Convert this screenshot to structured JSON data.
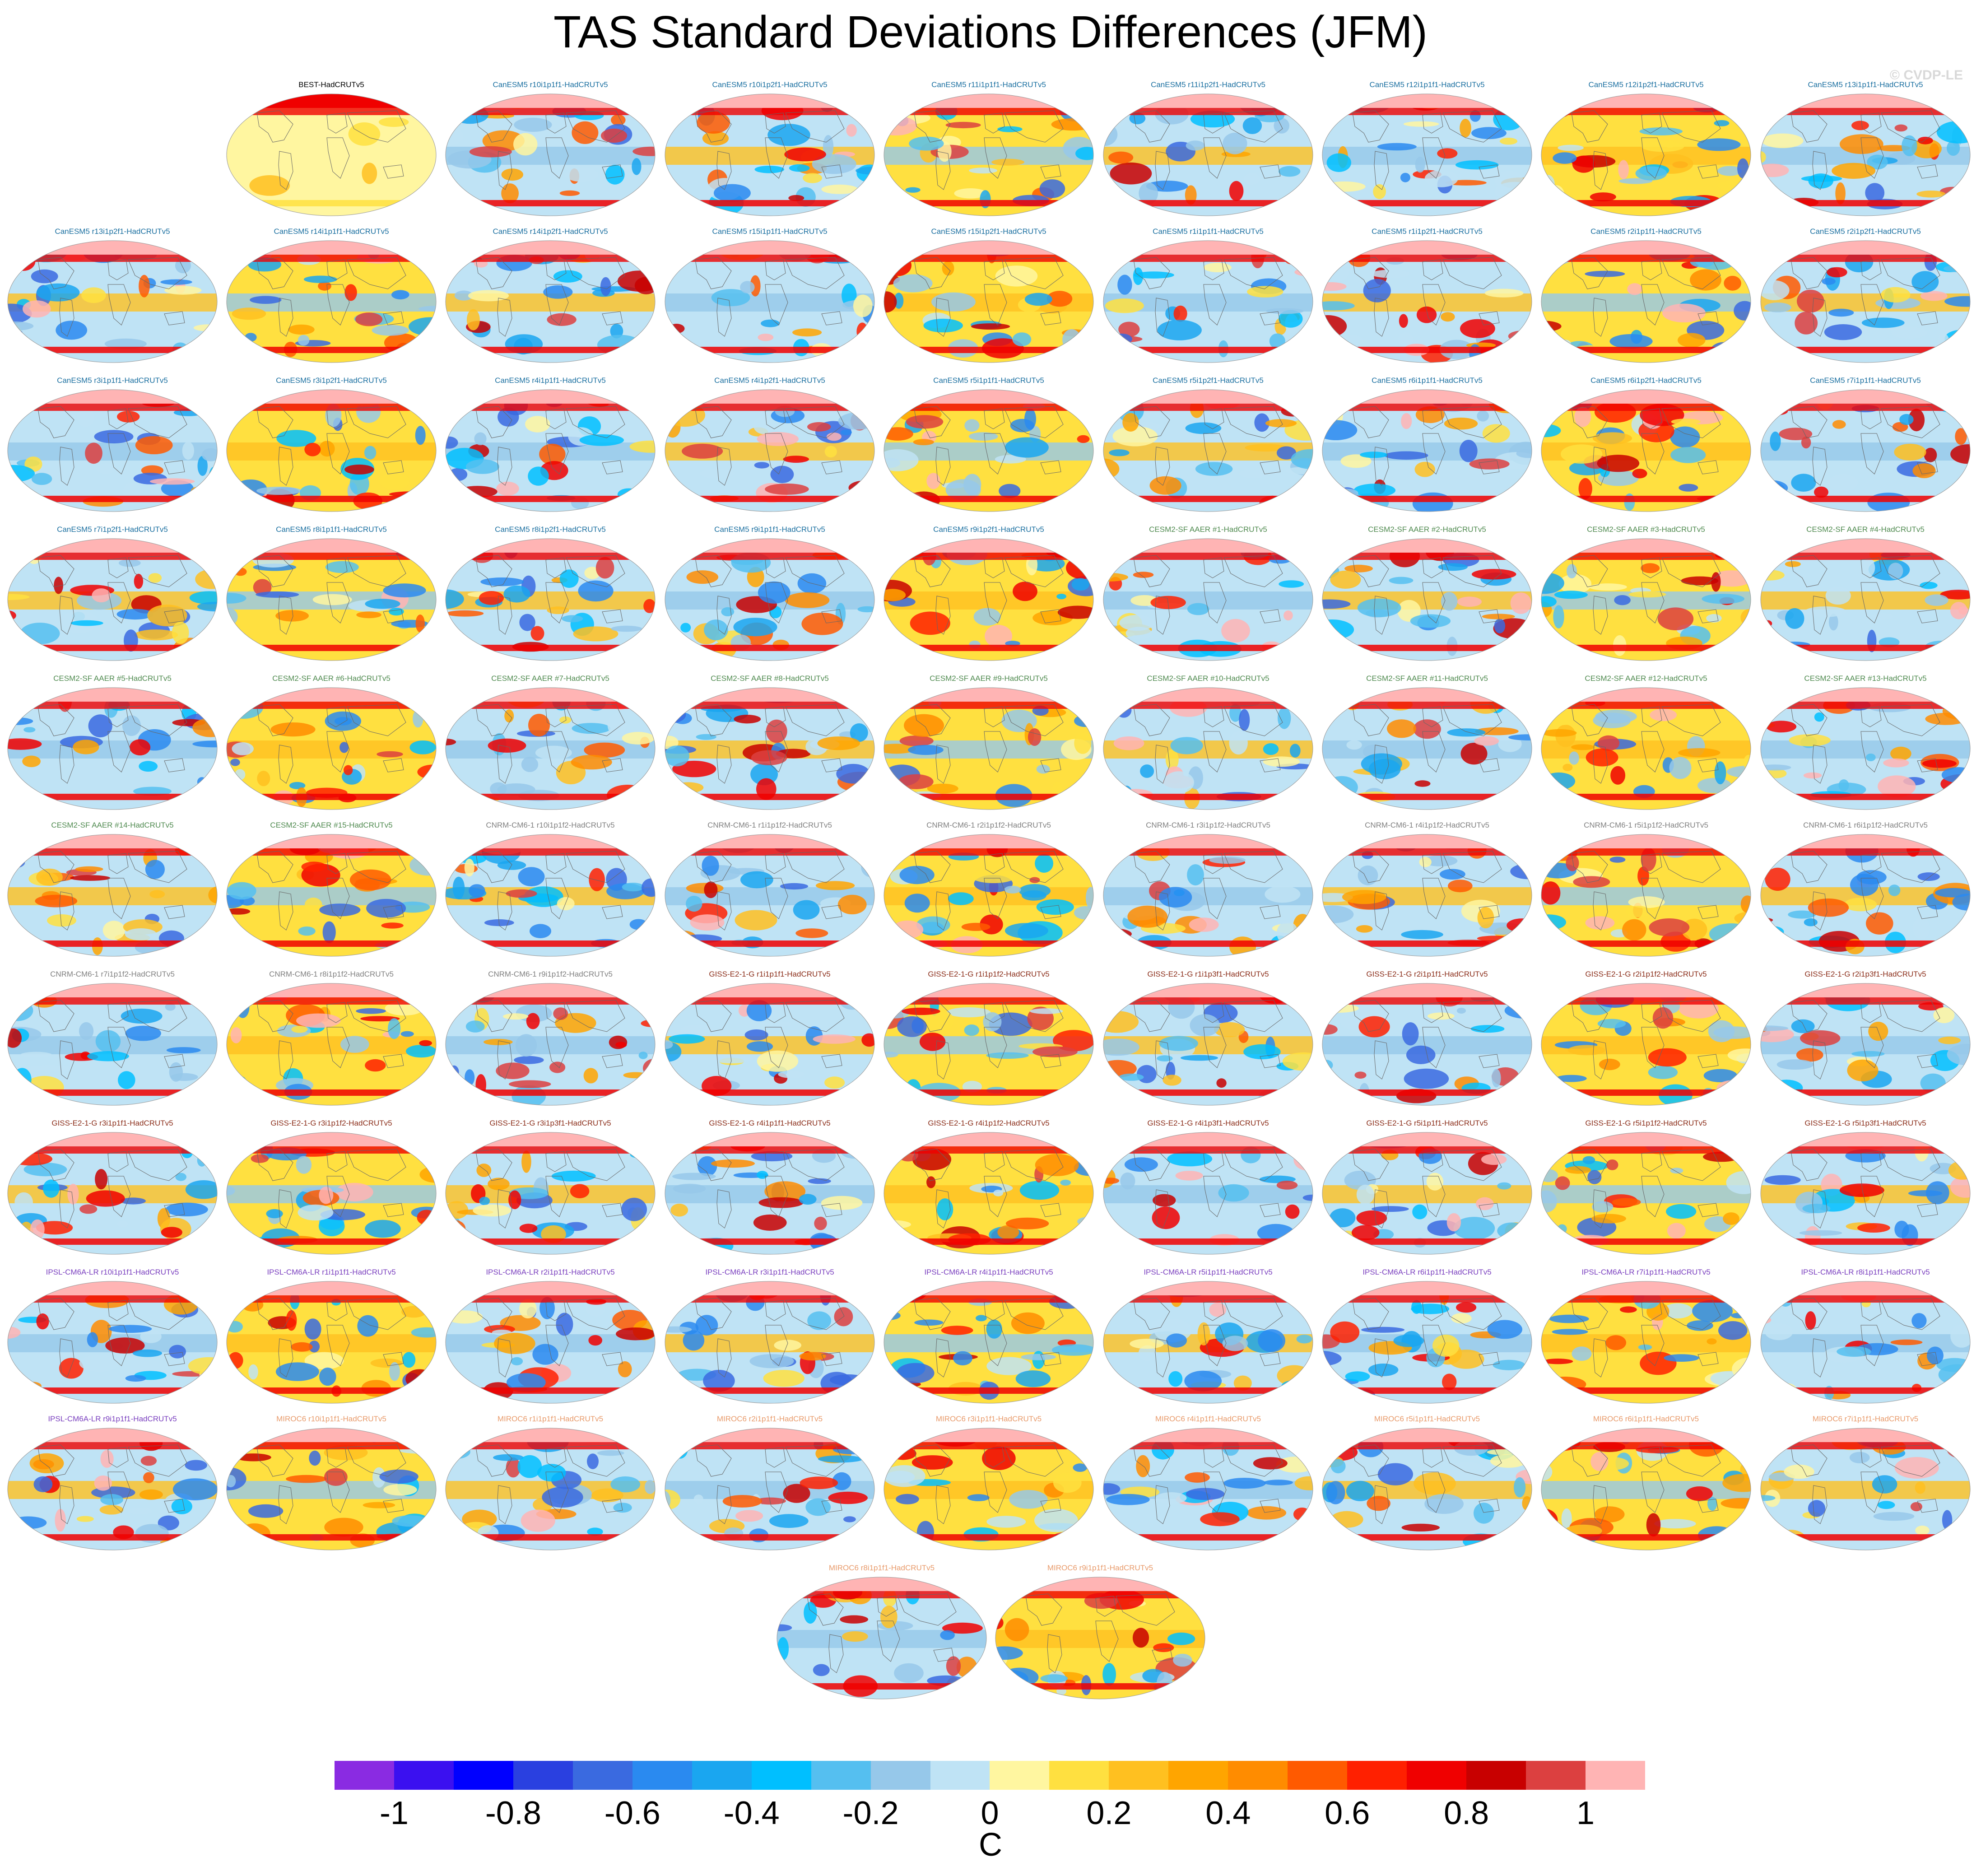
{
  "figure": {
    "title": "TAS Standard Deviations Differences (JFM)",
    "watermark": "© CVDP-LE"
  },
  "panels": [
    {
      "label": "BEST-HadCRUTv5",
      "group": "obs"
    },
    {
      "label": "CanESM5 r10i1p1f1-HadCRUTv5",
      "group": "canesm"
    },
    {
      "label": "CanESM5 r10i1p2f1-HadCRUTv5",
      "group": "canesm"
    },
    {
      "label": "CanESM5 r11i1p1f1-HadCRUTv5",
      "group": "canesm"
    },
    {
      "label": "CanESM5 r11i1p2f1-HadCRUTv5",
      "group": "canesm"
    },
    {
      "label": "CanESM5 r12i1p1f1-HadCRUTv5",
      "group": "canesm"
    },
    {
      "label": "CanESM5 r12i1p2f1-HadCRUTv5",
      "group": "canesm"
    },
    {
      "label": "CanESM5 r13i1p1f1-HadCRUTv5",
      "group": "canesm"
    },
    {
      "label": "CanESM5 r13i1p2f1-HadCRUTv5",
      "group": "canesm"
    },
    {
      "label": "CanESM5 r14i1p1f1-HadCRUTv5",
      "group": "canesm"
    },
    {
      "label": "CanESM5 r14i1p2f1-HadCRUTv5",
      "group": "canesm"
    },
    {
      "label": "CanESM5 r15i1p1f1-HadCRUTv5",
      "group": "canesm"
    },
    {
      "label": "CanESM5 r15i1p2f1-HadCRUTv5",
      "group": "canesm"
    },
    {
      "label": "CanESM5 r1i1p1f1-HadCRUTv5",
      "group": "canesm"
    },
    {
      "label": "CanESM5 r1i1p2f1-HadCRUTv5",
      "group": "canesm"
    },
    {
      "label": "CanESM5 r2i1p1f1-HadCRUTv5",
      "group": "canesm"
    },
    {
      "label": "CanESM5 r2i1p2f1-HadCRUTv5",
      "group": "canesm"
    },
    {
      "label": "CanESM5 r3i1p1f1-HadCRUTv5",
      "group": "canesm"
    },
    {
      "label": "CanESM5 r3i1p2f1-HadCRUTv5",
      "group": "canesm"
    },
    {
      "label": "CanESM5 r4i1p1f1-HadCRUTv5",
      "group": "canesm"
    },
    {
      "label": "CanESM5 r4i1p2f1-HadCRUTv5",
      "group": "canesm"
    },
    {
      "label": "CanESM5 r5i1p1f1-HadCRUTv5",
      "group": "canesm"
    },
    {
      "label": "CanESM5 r5i1p2f1-HadCRUTv5",
      "group": "canesm"
    },
    {
      "label": "CanESM5 r6i1p1f1-HadCRUTv5",
      "group": "canesm"
    },
    {
      "label": "CanESM5 r6i1p2f1-HadCRUTv5",
      "group": "canesm"
    },
    {
      "label": "CanESM5 r7i1p1f1-HadCRUTv5",
      "group": "canesm"
    },
    {
      "label": "CanESM5 r7i1p2f1-HadCRUTv5",
      "group": "canesm"
    },
    {
      "label": "CanESM5 r8i1p1f1-HadCRUTv5",
      "group": "canesm"
    },
    {
      "label": "CanESM5 r8i1p2f1-HadCRUTv5",
      "group": "canesm"
    },
    {
      "label": "CanESM5 r9i1p1f1-HadCRUTv5",
      "group": "canesm"
    },
    {
      "label": "CanESM5 r9i1p2f1-HadCRUTv5",
      "group": "canesm"
    },
    {
      "label": "CESM2-SF AAER #1-HadCRUTv5",
      "group": "cesm"
    },
    {
      "label": "CESM2-SF AAER #2-HadCRUTv5",
      "group": "cesm"
    },
    {
      "label": "CESM2-SF AAER #3-HadCRUTv5",
      "group": "cesm"
    },
    {
      "label": "CESM2-SF AAER #4-HadCRUTv5",
      "group": "cesm"
    },
    {
      "label": "CESM2-SF AAER #5-HadCRUTv5",
      "group": "cesm"
    },
    {
      "label": "CESM2-SF AAER #6-HadCRUTv5",
      "group": "cesm"
    },
    {
      "label": "CESM2-SF AAER #7-HadCRUTv5",
      "group": "cesm"
    },
    {
      "label": "CESM2-SF AAER #8-HadCRUTv5",
      "group": "cesm"
    },
    {
      "label": "CESM2-SF AAER #9-HadCRUTv5",
      "group": "cesm"
    },
    {
      "label": "CESM2-SF AAER #10-HadCRUTv5",
      "group": "cesm"
    },
    {
      "label": "CESM2-SF AAER #11-HadCRUTv5",
      "group": "cesm"
    },
    {
      "label": "CESM2-SF AAER #12-HadCRUTv5",
      "group": "cesm"
    },
    {
      "label": "CESM2-SF AAER #13-HadCRUTv5",
      "group": "cesm"
    },
    {
      "label": "CESM2-SF AAER #14-HadCRUTv5",
      "group": "cesm"
    },
    {
      "label": "CESM2-SF AAER #15-HadCRUTv5",
      "group": "cesm"
    },
    {
      "label": "CNRM-CM6-1 r10i1p1f2-HadCRUTv5",
      "group": "cnrm"
    },
    {
      "label": "CNRM-CM6-1 r1i1p1f2-HadCRUTv5",
      "group": "cnrm"
    },
    {
      "label": "CNRM-CM6-1 r2i1p1f2-HadCRUTv5",
      "group": "cnrm"
    },
    {
      "label": "CNRM-CM6-1 r3i1p1f2-HadCRUTv5",
      "group": "cnrm"
    },
    {
      "label": "CNRM-CM6-1 r4i1p1f2-HadCRUTv5",
      "group": "cnrm"
    },
    {
      "label": "CNRM-CM6-1 r5i1p1f2-HadCRUTv5",
      "group": "cnrm"
    },
    {
      "label": "CNRM-CM6-1 r6i1p1f2-HadCRUTv5",
      "group": "cnrm"
    },
    {
      "label": "CNRM-CM6-1 r7i1p1f2-HadCRUTv5",
      "group": "cnrm"
    },
    {
      "label": "CNRM-CM6-1 r8i1p1f2-HadCRUTv5",
      "group": "cnrm"
    },
    {
      "label": "CNRM-CM6-1 r9i1p1f2-HadCRUTv5",
      "group": "cnrm"
    },
    {
      "label": "GISS-E2-1-G r1i1p1f1-HadCRUTv5",
      "group": "giss"
    },
    {
      "label": "GISS-E2-1-G r1i1p1f2-HadCRUTv5",
      "group": "giss"
    },
    {
      "label": "GISS-E2-1-G r1i1p3f1-HadCRUTv5",
      "group": "giss"
    },
    {
      "label": "GISS-E2-1-G r2i1p1f1-HadCRUTv5",
      "group": "giss"
    },
    {
      "label": "GISS-E2-1-G r2i1p1f2-HadCRUTv5",
      "group": "giss"
    },
    {
      "label": "GISS-E2-1-G r2i1p3f1-HadCRUTv5",
      "group": "giss"
    },
    {
      "label": "GISS-E2-1-G r3i1p1f1-HadCRUTv5",
      "group": "giss"
    },
    {
      "label": "GISS-E2-1-G r3i1p1f2-HadCRUTv5",
      "group": "giss"
    },
    {
      "label": "GISS-E2-1-G r3i1p3f1-HadCRUTv5",
      "group": "giss"
    },
    {
      "label": "GISS-E2-1-G r4i1p1f1-HadCRUTv5",
      "group": "giss"
    },
    {
      "label": "GISS-E2-1-G r4i1p1f2-HadCRUTv5",
      "group": "giss"
    },
    {
      "label": "GISS-E2-1-G r4i1p3f1-HadCRUTv5",
      "group": "giss"
    },
    {
      "label": "GISS-E2-1-G r5i1p1f1-HadCRUTv5",
      "group": "giss"
    },
    {
      "label": "GISS-E2-1-G r5i1p1f2-HadCRUTv5",
      "group": "giss"
    },
    {
      "label": "GISS-E2-1-G r5i1p3f1-HadCRUTv5",
      "group": "giss"
    },
    {
      "label": "IPSL-CM6A-LR r10i1p1f1-HadCRUTv5",
      "group": "ipsl"
    },
    {
      "label": "IPSL-CM6A-LR r1i1p1f1-HadCRUTv5",
      "group": "ipsl"
    },
    {
      "label": "IPSL-CM6A-LR r2i1p1f1-HadCRUTv5",
      "group": "ipsl"
    },
    {
      "label": "IPSL-CM6A-LR r3i1p1f1-HadCRUTv5",
      "group": "ipsl"
    },
    {
      "label": "IPSL-CM6A-LR r4i1p1f1-HadCRUTv5",
      "group": "ipsl"
    },
    {
      "label": "IPSL-CM6A-LR r5i1p1f1-HadCRUTv5",
      "group": "ipsl"
    },
    {
      "label": "IPSL-CM6A-LR r6i1p1f1-HadCRUTv5",
      "group": "ipsl"
    },
    {
      "label": "IPSL-CM6A-LR r7i1p1f1-HadCRUTv5",
      "group": "ipsl"
    },
    {
      "label": "IPSL-CM6A-LR r8i1p1f1-HadCRUTv5",
      "group": "ipsl"
    },
    {
      "label": "IPSL-CM6A-LR r9i1p1f1-HadCRUTv5",
      "group": "ipsl"
    },
    {
      "label": "MIROC6 r10i1p1f1-HadCRUTv5",
      "group": "miroc"
    },
    {
      "label": "MIROC6 r1i1p1f1-HadCRUTv5",
      "group": "miroc"
    },
    {
      "label": "MIROC6 r2i1p1f1-HadCRUTv5",
      "group": "miroc"
    },
    {
      "label": "MIROC6 r3i1p1f1-HadCRUTv5",
      "group": "miroc"
    },
    {
      "label": "MIROC6 r4i1p1f1-HadCRUTv5",
      "group": "miroc"
    },
    {
      "label": "MIROC6 r5i1p1f1-HadCRUTv5",
      "group": "miroc"
    },
    {
      "label": "MIROC6 r6i1p1f1-HadCRUTv5",
      "group": "miroc"
    },
    {
      "label": "MIROC6 r7i1p1f1-HadCRUTv5",
      "group": "miroc"
    },
    {
      "label": "MIROC6 r8i1p1f1-HadCRUTv5",
      "group": "miroc"
    },
    {
      "label": "MIROC6 r9i1p1f1-HadCRUTv5",
      "group": "miroc"
    }
  ],
  "group_label_colors": {
    "obs": "#000000",
    "canesm": "#1a6fa0",
    "cesm": "#4f8a4f",
    "cnrm": "#808080",
    "giss": "#8b2e1a",
    "ipsl": "#7a3fbf",
    "miroc": "#e89a6a"
  },
  "colorbar": {
    "colors": [
      "#8a2be2",
      "#3b10f0",
      "#0000ff",
      "#2a40e0",
      "#3a6ae0",
      "#2a8af0",
      "#1aa6f0",
      "#00bfff",
      "#55bff0",
      "#96c8ea",
      "#bfe3f5",
      "#fff6a0",
      "#ffe040",
      "#ffc020",
      "#ffa500",
      "#ff8c00",
      "#ff5a00",
      "#ff2000",
      "#f00000",
      "#c80000",
      "#dc4040",
      "#ffb4b4"
    ],
    "tick_labels": [
      "-1",
      "-0.8",
      "-0.6",
      "-0.4",
      "-0.2",
      "0",
      "0.2",
      "0.4",
      "0.6",
      "0.8",
      "1"
    ],
    "tick_values": [
      -1,
      -0.8,
      -0.6,
      -0.4,
      -0.2,
      0,
      0.2,
      0.4,
      0.6,
      0.8,
      1
    ],
    "range": [
      -1.1,
      1.1
    ],
    "unit": "C"
  }
}
